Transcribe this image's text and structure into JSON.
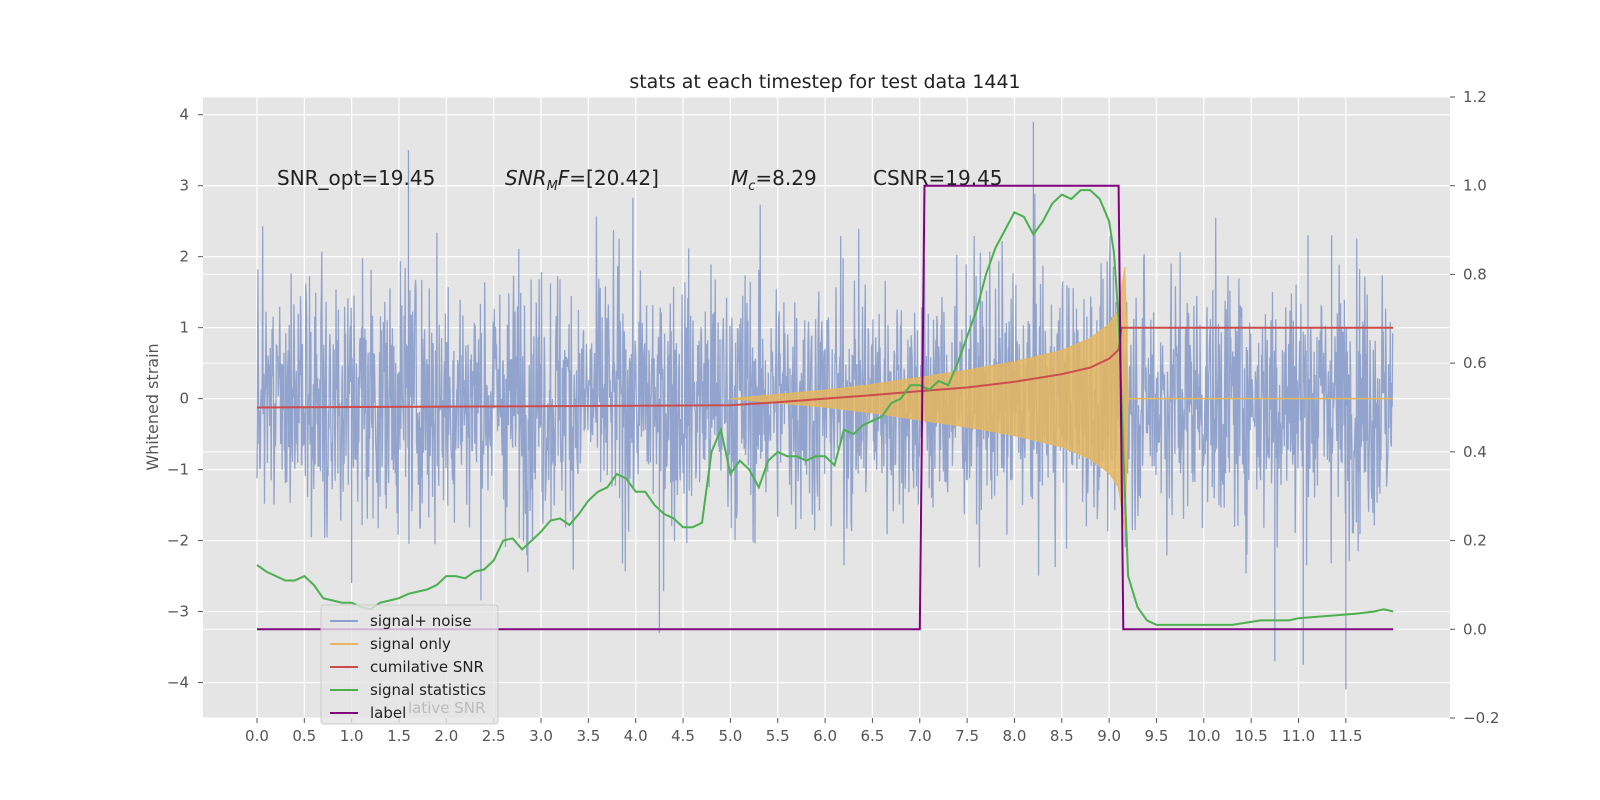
{
  "chart_data": {
    "type": "line",
    "title": "stats at each timestep for test data 1441",
    "ylabel": "Whitened strain",
    "xlim": [
      -0.57,
      12.6
    ],
    "ylim": [
      -4.5,
      4.25
    ],
    "y2lim": [
      -0.2,
      1.2
    ],
    "xticks": [
      "0.0",
      "0.5",
      "1.0",
      "1.5",
      "2.0",
      "2.5",
      "3.0",
      "3.5",
      "4.0",
      "4.5",
      "5.0",
      "5.5",
      "6.0",
      "6.5",
      "7.0",
      "7.5",
      "8.0",
      "8.5",
      "9.0",
      "9.5",
      "10.0",
      "10.5",
      "11.0",
      "11.5"
    ],
    "yticks": [
      "4",
      "3",
      "2",
      "1",
      "0",
      "−1",
      "−2",
      "−3",
      "−4"
    ],
    "y2ticks": [
      "1.2",
      "1.0",
      "0.8",
      "0.6",
      "0.4",
      "0.2",
      "0.0",
      "−0.2"
    ],
    "grid": true,
    "legend_position": "lower-left",
    "annotations": [
      "SNR_opt=19.45",
      "[20.42]",
      "=8.29",
      "CSNR=19.45"
    ],
    "annotation_math": [
      "SNR",
      "M",
      "F=",
      "M",
      "c"
    ],
    "series": [
      {
        "name": "signal+ noise",
        "color": "#8da0cb",
        "axis": "left",
        "style": "noise",
        "amplitude_sd": 0.9,
        "extremes": [
          [
            1.6,
            3.5
          ],
          [
            8.2,
            3.9
          ],
          [
            11.5,
            -4.1
          ],
          [
            4.25,
            -3.3
          ],
          [
            10.75,
            -3.7
          ],
          [
            11.05,
            -3.75
          ],
          [
            11.1,
            2.3
          ],
          [
            11.35,
            2.3
          ],
          [
            5.95,
            0.8
          ],
          [
            1.0,
            -2.6
          ]
        ]
      },
      {
        "name": "signal only",
        "color": "#e5b760",
        "axis": "left",
        "style": "chirp",
        "x": [
          5.0,
          5.5,
          6.0,
          6.5,
          7.0,
          7.5,
          8.0,
          8.5,
          8.8,
          9.0,
          9.1,
          9.17,
          9.2,
          12.0
        ],
        "envelope": [
          0.0,
          0.06,
          0.12,
          0.2,
          0.3,
          0.4,
          0.52,
          0.68,
          0.85,
          1.05,
          1.25,
          1.9,
          0.0,
          0.0
        ]
      },
      {
        "name": "cumilative SNR",
        "color": "#cc4c4c",
        "axis": "right",
        "x": [
          0.0,
          5.0,
          5.5,
          6.0,
          6.5,
          7.0,
          7.5,
          8.0,
          8.5,
          8.8,
          9.0,
          9.1,
          9.13,
          12.0
        ],
        "y": [
          0.5,
          0.505,
          0.512,
          0.52,
          0.528,
          0.537,
          0.545,
          0.558,
          0.575,
          0.59,
          0.61,
          0.63,
          0.68,
          0.68
        ]
      },
      {
        "name": "signal statistics",
        "color": "#4caf50",
        "axis": "right",
        "x": [
          0.0,
          0.1,
          0.2,
          0.3,
          0.4,
          0.5,
          0.6,
          0.7,
          0.8,
          0.9,
          1.0,
          1.1,
          1.2,
          1.3,
          1.4,
          1.5,
          1.6,
          1.7,
          1.8,
          1.9,
          2.0,
          2.1,
          2.2,
          2.3,
          2.4,
          2.5,
          2.6,
          2.7,
          2.8,
          2.9,
          3.0,
          3.1,
          3.2,
          3.3,
          3.4,
          3.5,
          3.6,
          3.7,
          3.8,
          3.9,
          4.0,
          4.1,
          4.2,
          4.3,
          4.4,
          4.5,
          4.6,
          4.7,
          4.8,
          4.9,
          5.0,
          5.1,
          5.2,
          5.3,
          5.4,
          5.5,
          5.6,
          5.7,
          5.8,
          5.9,
          6.0,
          6.1,
          6.2,
          6.3,
          6.4,
          6.5,
          6.6,
          6.7,
          6.8,
          6.9,
          7.0,
          7.1,
          7.2,
          7.3,
          7.4,
          7.5,
          7.6,
          7.7,
          7.8,
          7.9,
          8.0,
          8.1,
          8.2,
          8.3,
          8.4,
          8.5,
          8.6,
          8.7,
          8.8,
          8.9,
          9.0,
          9.05,
          9.1,
          9.15,
          9.2,
          9.3,
          9.4,
          9.5,
          9.7,
          9.9,
          10.0,
          10.3,
          10.6,
          10.9,
          11.0,
          11.3,
          11.6,
          11.8,
          11.9,
          12.0
        ],
        "y": [
          0.145,
          0.13,
          0.12,
          0.11,
          0.11,
          0.12,
          0.1,
          0.07,
          0.065,
          0.06,
          0.06,
          0.05,
          0.045,
          0.06,
          0.065,
          0.07,
          0.08,
          0.085,
          0.09,
          0.1,
          0.12,
          0.12,
          0.115,
          0.13,
          0.135,
          0.155,
          0.2,
          0.205,
          0.18,
          0.2,
          0.22,
          0.245,
          0.25,
          0.235,
          0.26,
          0.29,
          0.31,
          0.32,
          0.35,
          0.34,
          0.31,
          0.31,
          0.28,
          0.26,
          0.25,
          0.23,
          0.23,
          0.24,
          0.4,
          0.45,
          0.35,
          0.38,
          0.36,
          0.32,
          0.38,
          0.4,
          0.39,
          0.39,
          0.38,
          0.39,
          0.39,
          0.37,
          0.45,
          0.44,
          0.46,
          0.47,
          0.48,
          0.51,
          0.52,
          0.55,
          0.55,
          0.54,
          0.56,
          0.55,
          0.6,
          0.66,
          0.72,
          0.8,
          0.86,
          0.9,
          0.94,
          0.93,
          0.89,
          0.92,
          0.96,
          0.98,
          0.97,
          0.99,
          0.99,
          0.97,
          0.92,
          0.85,
          0.7,
          0.4,
          0.12,
          0.05,
          0.02,
          0.01,
          0.01,
          0.01,
          0.01,
          0.01,
          0.02,
          0.02,
          0.025,
          0.03,
          0.035,
          0.04,
          0.045,
          0.04
        ]
      },
      {
        "name": "label",
        "color": "#800080",
        "axis": "right",
        "x": [
          0.0,
          7.0,
          7.05,
          9.1,
          9.15,
          12.0
        ],
        "y": [
          0.0,
          0.0,
          1.0,
          1.0,
          0.0,
          0.0
        ]
      }
    ],
    "legend_occluded_text": "lative SNR"
  },
  "colors": {
    "axes_bg": "#e5e5e5",
    "grid": "#ffffff",
    "text": "#555555"
  }
}
